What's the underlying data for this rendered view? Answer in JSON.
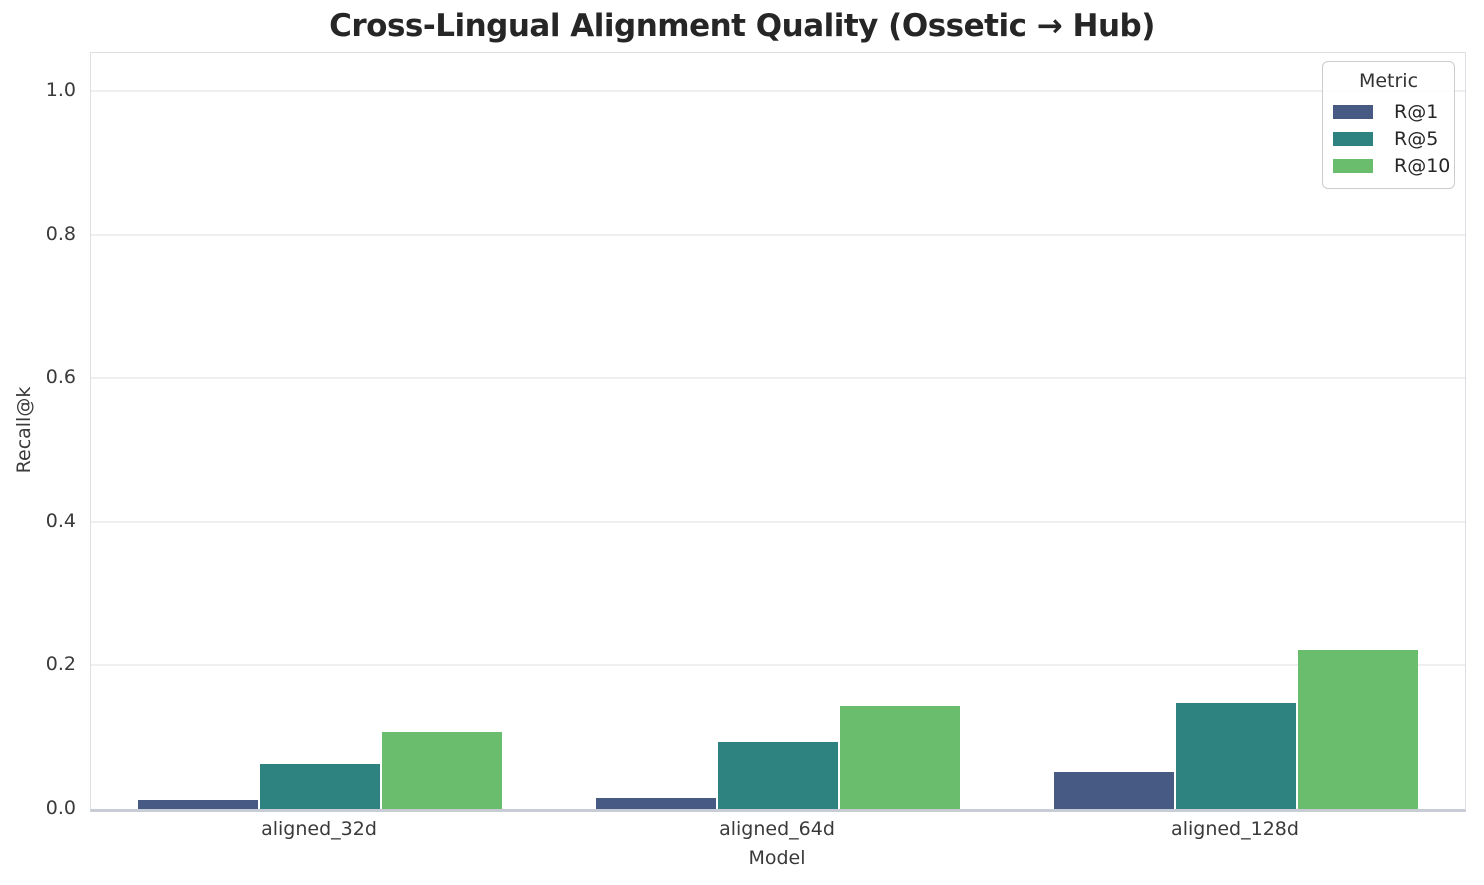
{
  "chart_data": {
    "type": "bar",
    "title": "Cross-Lingual Alignment Quality (Ossetic → Hub)",
    "xlabel": "Model",
    "ylabel": "Recall@k",
    "legend_title": "Metric",
    "legend_position": "upper-right",
    "grid": "horizontal",
    "categories": [
      "aligned_32d",
      "aligned_64d",
      "aligned_128d"
    ],
    "series": [
      {
        "name": "R@1",
        "color": "#475a83",
        "values": [
          0.012,
          0.015,
          0.052
        ]
      },
      {
        "name": "R@5",
        "color": "#2e8380",
        "values": [
          0.063,
          0.094,
          0.148
        ]
      },
      {
        "name": "R@10",
        "color": "#6abd6c",
        "values": [
          0.107,
          0.144,
          0.222
        ]
      }
    ],
    "ylim": [
      0.0,
      1.05
    ],
    "yticks": [
      0.0,
      0.2,
      0.4,
      0.6,
      0.8,
      1.0
    ],
    "ytick_labels": [
      "0.0",
      "0.2",
      "0.4",
      "0.6",
      "0.8",
      "1.0"
    ],
    "bar_group_width": 0.8
  }
}
